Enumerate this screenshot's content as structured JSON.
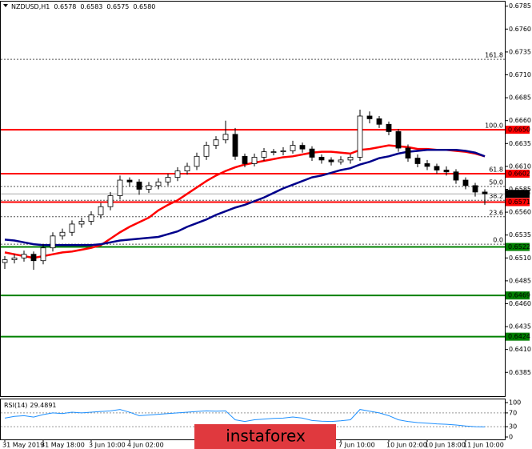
{
  "chart_data": {
    "type": "candlestick",
    "title": "NZDUSD,H1",
    "quote": [
      {
        "value": 0.6578,
        "label": "0.6578"
      },
      {
        "value": 0.6583,
        "label": "0.6583"
      },
      {
        "value": 0.6575,
        "label": "0.6575"
      },
      {
        "value": 0.658,
        "label": "0.6580"
      }
    ],
    "x": [
      "31 May 2019",
      null,
      null,
      null,
      "31 May 18:00",
      null,
      null,
      null,
      null,
      "3 Jun 10:00",
      null,
      null,
      null,
      "4 Jun 02:00",
      null,
      null,
      null,
      null,
      null,
      null,
      null,
      null,
      null,
      null,
      null,
      null,
      null,
      null,
      null,
      null,
      null,
      null,
      null,
      null,
      null,
      "7 Jun 10:00",
      null,
      null,
      null,
      null,
      "10 Jun 02:00",
      null,
      null,
      null,
      "10 Jun 18:00",
      null,
      null,
      null,
      "11 Jun 10:00",
      null,
      null
    ],
    "open": [
      0.6505,
      0.6508,
      0.651,
      0.6514,
      0.6507,
      0.6521,
      0.6534,
      0.6538,
      0.6547,
      0.655,
      0.6557,
      0.6566,
      0.6578,
      0.6595,
      0.6593,
      0.6585,
      0.6589,
      0.6593,
      0.6598,
      0.6605,
      0.661,
      0.6621,
      0.6633,
      0.6639,
      0.6645,
      0.6621,
      0.6613,
      0.662,
      0.6626,
      0.6626,
      0.6627,
      0.6633,
      0.6629,
      0.662,
      0.6617,
      0.6615,
      0.6617,
      0.662,
      0.6665,
      0.6662,
      0.6656,
      0.6648,
      0.663,
      0.6619,
      0.6613,
      0.661,
      0.6606,
      0.6604,
      0.6595,
      0.6589,
      0.6582
    ],
    "high": [
      0.6512,
      0.6514,
      0.6518,
      0.6517,
      0.6525,
      0.6538,
      0.6542,
      0.6551,
      0.6554,
      0.6561,
      0.657,
      0.6582,
      0.66,
      0.6598,
      0.6596,
      0.6593,
      0.6597,
      0.6602,
      0.6609,
      0.6614,
      0.6625,
      0.6637,
      0.6643,
      0.666,
      0.6652,
      0.6624,
      0.6624,
      0.663,
      0.6629,
      0.6631,
      0.6638,
      0.6636,
      0.6632,
      0.6623,
      0.662,
      0.6621,
      0.6623,
      0.6672,
      0.667,
      0.6665,
      0.6659,
      0.6651,
      0.6634,
      0.6623,
      0.6617,
      0.6613,
      0.661,
      0.6607,
      0.6598,
      0.6592,
      0.6585
    ],
    "low": [
      0.6498,
      0.6504,
      0.6506,
      0.6497,
      0.6503,
      0.6517,
      0.653,
      0.6534,
      0.6543,
      0.6546,
      0.6553,
      0.6562,
      0.6574,
      0.6588,
      0.6579,
      0.6581,
      0.6585,
      0.6589,
      0.6594,
      0.6601,
      0.6606,
      0.6617,
      0.6629,
      0.6635,
      0.6617,
      0.6609,
      0.661,
      0.6616,
      0.6622,
      0.6622,
      0.6624,
      0.6625,
      0.6616,
      0.6613,
      0.6611,
      0.6612,
      0.6613,
      0.6616,
      0.6657,
      0.6652,
      0.6644,
      0.6626,
      0.6615,
      0.6609,
      0.6606,
      0.6602,
      0.66,
      0.6591,
      0.6585,
      0.6577,
      0.6568
    ],
    "close": [
      0.6508,
      0.651,
      0.6514,
      0.6507,
      0.6521,
      0.6534,
      0.6538,
      0.6547,
      0.655,
      0.6557,
      0.6566,
      0.6578,
      0.6595,
      0.6593,
      0.6585,
      0.6589,
      0.6593,
      0.6598,
      0.6605,
      0.661,
      0.6621,
      0.6633,
      0.6639,
      0.6645,
      0.6621,
      0.6613,
      0.662,
      0.6626,
      0.6626,
      0.6627,
      0.6633,
      0.6629,
      0.662,
      0.6617,
      0.6615,
      0.6617,
      0.662,
      0.6665,
      0.6662,
      0.6656,
      0.6648,
      0.663,
      0.6619,
      0.6613,
      0.661,
      0.6606,
      0.6604,
      0.6595,
      0.6589,
      0.6582,
      0.658
    ],
    "up_color": "#ffffff",
    "down_color": "#000000",
    "ma": [
      {
        "color": "#ff0000",
        "values": [
          0.6516,
          0.6514,
          0.6512,
          0.651,
          0.6512,
          0.6514,
          0.6516,
          0.6517,
          0.6519,
          0.6521,
          0.6524,
          0.6531,
          0.6538,
          0.6544,
          0.6549,
          0.6554,
          0.6562,
          0.6568,
          0.6573,
          0.658,
          0.6587,
          0.6594,
          0.66,
          0.6605,
          0.6609,
          0.6612,
          0.6614,
          0.6616,
          0.6618,
          0.662,
          0.6621,
          0.6623,
          0.6625,
          0.6626,
          0.6626,
          0.6625,
          0.6624,
          0.6628,
          0.6629,
          0.6631,
          0.6633,
          0.6632,
          0.6631,
          0.6629,
          0.6629,
          0.6628,
          0.6628,
          0.6627,
          0.6626,
          0.6624,
          0.6621
        ]
      },
      {
        "color": "#00008b",
        "values": [
          0.653,
          0.6529,
          0.6527,
          0.6525,
          0.6524,
          0.6524,
          0.6524,
          0.6524,
          0.6524,
          0.6524,
          0.6525,
          0.6527,
          0.6529,
          0.653,
          0.6531,
          0.6532,
          0.6533,
          0.6536,
          0.6539,
          0.6544,
          0.6548,
          0.6552,
          0.6557,
          0.6561,
          0.6565,
          0.6568,
          0.6572,
          0.6576,
          0.6581,
          0.6586,
          0.659,
          0.6594,
          0.6598,
          0.66,
          0.6603,
          0.6606,
          0.6608,
          0.6612,
          0.6615,
          0.6619,
          0.6621,
          0.6624,
          0.6626,
          0.6627,
          0.6628,
          0.6628,
          0.6628,
          0.6628,
          0.6627,
          0.6625,
          0.6621
        ]
      }
    ],
    "ylim": [
      0.6359,
      0.679
    ],
    "yticks": [
      0.6785,
      {
        "value": 0.676,
        "label": "0.6760"
      },
      0.6735,
      {
        "value": 0.671,
        "label": "0.6710"
      },
      0.6685,
      {
        "value": 0.666,
        "label": "0.6660"
      },
      0.6635,
      {
        "value": 0.661,
        "label": "0.6610"
      },
      0.6585,
      {
        "value": 0.656,
        "label": "0.6560"
      },
      0.6535,
      {
        "value": 0.651,
        "label": "0.6510"
      },
      0.6485,
      {
        "value": 0.646,
        "label": "0.6460"
      },
      0.6435,
      {
        "value": 0.641,
        "label": "0.6410"
      },
      0.6385
    ],
    "levels": [
      {
        "value": 0.665,
        "label": "0.6650",
        "color": "#ff0000"
      },
      {
        "value": 0.6602,
        "label": "0.6602",
        "color": "#ff0000"
      },
      {
        "value": 0.6571,
        "label": "0.6571",
        "color": "#ff0000"
      },
      {
        "value": 0.6522,
        "label": "0.6522",
        "color": "#008000"
      },
      {
        "value": 0.6469,
        "label": "0.6469",
        "color": "#008000"
      },
      {
        "value": 0.6424,
        "label": "0.6424",
        "color": "#008000"
      }
    ],
    "fib_levels": [
      {
        "value": 0.6727,
        "label": "161.8"
      },
      {
        "value": 0.665,
        "label": "100.0"
      },
      {
        "value": 0.6602,
        "label": "61.8"
      },
      {
        "value": 0.6588,
        "label": "50.0"
      },
      {
        "value": 0.6573,
        "label": "38.2"
      },
      {
        "value": 0.6555,
        "label": "23.6"
      },
      {
        "value": 0.6525,
        "label": "0.0"
      }
    ],
    "last": {
      "value": 0.658,
      "label": "0.6580"
    },
    "rsi": {
      "name": "RSI(14)",
      "color": "#1e90ff",
      "ylim": [
        0,
        100
      ],
      "yticks": [
        100,
        70,
        30,
        0
      ],
      "values": [
        55,
        60,
        62,
        58,
        65,
        70,
        68,
        72,
        70,
        72,
        74,
        76,
        80,
        72,
        62,
        64,
        66,
        68,
        70,
        72,
        74,
        76,
        75,
        76,
        50,
        45,
        50,
        52,
        54,
        55,
        58,
        55,
        48,
        46,
        45,
        47,
        50,
        80,
        75,
        70,
        62,
        50,
        45,
        42,
        40,
        38,
        37,
        35,
        32,
        30,
        29.4891
      ]
    },
    "watermark": "instaforex"
  }
}
